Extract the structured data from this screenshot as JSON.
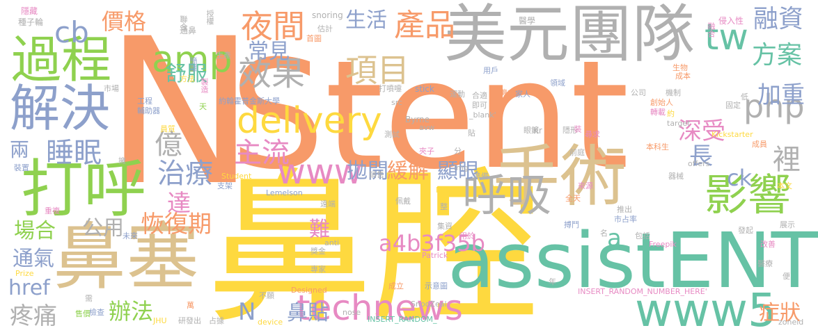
{
  "wordcloud": {
    "palette": {
      "orange": "#f79a69",
      "yellow": "#fed93f",
      "gray": "#b0b0b0",
      "tan": "#dcc28f",
      "blue": "#8da0cb",
      "green": "#8fd14f",
      "teal": "#66c2a5",
      "pink": "#e78ac3"
    },
    "words": [
      {
        "text": "Stent",
        "color": "#f79a69"
      },
      {
        "text": "N",
        "color": "#f79a69"
      },
      {
        "text": "鼻腔",
        "color": "#fed93f"
      },
      {
        "text": "美元團隊",
        "color": "#b0b0b0"
      },
      {
        "text": "鼻塞",
        "color": "#dcc28f"
      },
      {
        "text": "assistENT",
        "color": "#66c2a5"
      },
      {
        "text": "手術",
        "color": "#dcc28f"
      },
      {
        "text": "打呼",
        "color": "#8fd14f"
      },
      {
        "text": "過程",
        "color": "#8fd14f"
      },
      {
        "text": "解決",
        "color": "#8da0cb"
      },
      {
        "text": "影響",
        "color": "#8fd14f"
      },
      {
        "text": "呼吸",
        "color": "#b0b0b0"
      },
      {
        "text": "technews",
        "color": "#e78ac3"
      },
      {
        "text": "www5",
        "color": "#66c2a5"
      },
      {
        "text": "www",
        "color": "#e78ac3"
      },
      {
        "text": "delivery",
        "color": "#fed93f"
      },
      {
        "text": "amp",
        "color": "#8fd14f"
      },
      {
        "text": "夜間",
        "color": "#f79a69"
      },
      {
        "text": "產品",
        "color": "#f79a69"
      },
      {
        "text": "項目",
        "color": "#dcc28f"
      },
      {
        "text": "效果",
        "color": "#b0b0b0"
      },
      {
        "text": "tw",
        "color": "#66c2a5"
      },
      {
        "text": "php",
        "color": "#b0b0b0"
      },
      {
        "text": "cb",
        "color": "#8da0cb"
      },
      {
        "text": "主流",
        "color": "#e78ac3"
      },
      {
        "text": "治療",
        "color": "#8da0cb"
      },
      {
        "text": "睡眠",
        "color": "#8da0cb"
      },
      {
        "text": "億",
        "color": "#b0b0b0"
      },
      {
        "text": "a4b3f35b",
        "color": "#e78ac3"
      },
      {
        "text": "恢復期",
        "color": "#f79a69"
      },
      {
        "text": "達",
        "color": "#e78ac3"
      },
      {
        "text": "融資",
        "color": "#8da0cb"
      },
      {
        "text": "方案",
        "color": "#66c2a5"
      },
      {
        "text": "加重",
        "color": "#8da0cb"
      },
      {
        "text": "深受",
        "color": "#e78ac3"
      },
      {
        "text": "生活",
        "color": "#8da0cb"
      },
      {
        "text": "價格",
        "color": "#f79a69"
      },
      {
        "text": "常見",
        "color": "#8da0cb"
      },
      {
        "text": "舒服",
        "color": "#66c2a5"
      },
      {
        "text": "拋開",
        "color": "#8da0cb"
      },
      {
        "text": "緩解",
        "color": "#f79a69"
      },
      {
        "text": "顯眼",
        "color": "#8da0cb"
      },
      {
        "text": "長",
        "color": "#8da0cb"
      },
      {
        "text": "裡",
        "color": "#b0b0b0"
      },
      {
        "text": "ck",
        "color": "#8da0cb"
      },
      {
        "text": "a",
        "color": "#66c2a5"
      },
      {
        "text": "難",
        "color": "#e78ac3"
      },
      {
        "text": "公用",
        "color": "#b0b0b0"
      },
      {
        "text": "場合",
        "color": "#8fd14f"
      },
      {
        "text": "通氣",
        "color": "#8da0cb"
      },
      {
        "text": "href",
        "color": "#8da0cb"
      },
      {
        "text": "疼痛",
        "color": "#b0b0b0"
      },
      {
        "text": "辦法",
        "color": "#8fd14f"
      },
      {
        "text": "鼻貼",
        "color": "#8da0cb"
      },
      {
        "text": "N",
        "color": "#8da0cb"
      },
      {
        "text": "症狀",
        "color": "#f79a69"
      },
      {
        "text": "兩",
        "color": "#8da0cb"
      },
      {
        "text": "隱藏",
        "color": "#e78ac3"
      },
      {
        "text": "種子輪",
        "color": "#b0b0b0"
      },
      {
        "text": "通鼻",
        "color": "#b0b0b0"
      },
      {
        "text": "聯合",
        "color": "#b0b0b0"
      },
      {
        "text": "授權",
        "color": "#b0b0b0"
      },
      {
        "text": "snoring",
        "color": "#b0b0b0"
      },
      {
        "text": "估計",
        "color": "#b0b0b0"
      },
      {
        "text": "首圖",
        "color": "#f79a69"
      },
      {
        "text": "醫學",
        "color": "#b0b0b0"
      },
      {
        "text": "侵入性",
        "color": "#e78ac3"
      },
      {
        "text": "融合",
        "color": "#e78ac3"
      },
      {
        "text": "簡單",
        "color": "#8da0cb"
      },
      {
        "text": "方法",
        "color": "#fed93f"
      },
      {
        "text": "生產",
        "color": "#b0b0b0"
      },
      {
        "text": "市場",
        "color": "#b0b0b0"
      },
      {
        "text": "工程",
        "color": "#8da0cb"
      },
      {
        "text": "輔助器",
        "color": "#8da0cb"
      },
      {
        "text": "製造",
        "color": "#e78ac3"
      },
      {
        "text": "天",
        "color": "#8fd14f"
      },
      {
        "text": "約翰霍普金斯大學",
        "color": "#8da0cb"
      },
      {
        "text": "打噴嚏",
        "color": "#b0b0b0"
      },
      {
        "text": "stick",
        "color": "#8da0cb"
      },
      {
        "text": "運動",
        "color": "#b0b0b0"
      },
      {
        "text": "合適",
        "color": "#b0b0b0"
      },
      {
        "text": "即可",
        "color": "#b0b0b0"
      },
      {
        "text": "_blank'",
        "color": "#b0b0b0"
      },
      {
        "text": "用戶",
        "color": "#8da0cb"
      },
      {
        "text": "領域",
        "color": "#8da0cb"
      },
      {
        "text": "機會",
        "color": "#f79a69"
      },
      {
        "text": "家人",
        "color": "#8da0cb"
      },
      {
        "text": "生物",
        "color": "#f79a69"
      },
      {
        "text": "成本",
        "color": "#f79a69"
      },
      {
        "text": "公司",
        "color": "#b0b0b0"
      },
      {
        "text": "機制",
        "color": "#b0b0b0"
      },
      {
        "text": "低",
        "color": "#b0b0b0"
      },
      {
        "text": "固定",
        "color": "#b0b0b0"
      },
      {
        "text": "創始人",
        "color": "#f79a69"
      },
      {
        "text": "轉載",
        "color": "#e78ac3"
      },
      {
        "text": "約",
        "color": "#fed93f"
      },
      {
        "text": "target",
        "color": "#b0b0b0"
      },
      {
        "text": "Byrne",
        "color": "#b0b0b0"
      },
      {
        "text": "測試",
        "color": "#b0b0b0"
      },
      {
        "text": "src",
        "color": "#b0b0b0"
      },
      {
        "text": "avw",
        "color": "#b0b0b0"
      },
      {
        "text": "眼鏡",
        "color": "#b0b0b0"
      },
      {
        "text": "隱形",
        "color": "#b0b0b0"
      },
      {
        "text": "尋求",
        "color": "#e78ac3"
      },
      {
        "text": "裝",
        "color": "#e78ac3"
      },
      {
        "text": "Kickstarter",
        "color": "#fed93f"
      },
      {
        "text": "成員",
        "color": "#f79a69"
      },
      {
        "text": "本科生",
        "color": "#f79a69"
      },
      {
        "text": "員質",
        "color": "#fed93f"
      },
      {
        "text": "前庭",
        "color": "#b0b0b0"
      },
      {
        "text": "夾子",
        "color": "#e78ac3"
      },
      {
        "text": "Kr",
        "color": "#b0b0b0"
      },
      {
        "text": "貼",
        "color": "#b0b0b0"
      },
      {
        "text": "分",
        "color": "#b0b0b0"
      },
      {
        "text": "img",
        "color": "#b0b0b0"
      },
      {
        "text": "準備",
        "color": "#b0b0b0"
      },
      {
        "text": "銷售",
        "color": "#b0b0b0"
      },
      {
        "text": "Student",
        "color": "#fed93f"
      },
      {
        "text": "裝置",
        "color": "#8da0cb"
      },
      {
        "text": "擁",
        "color": "#b0b0b0"
      },
      {
        "text": "支架",
        "color": "#8da0cb"
      },
      {
        "text": "Lemelson",
        "color": "#8da0cb"
      },
      {
        "text": "offers",
        "color": "#b0b0b0"
      },
      {
        "text": "器械",
        "color": "#b0b0b0"
      },
      {
        "text": "來源",
        "color": "#e78ac3"
      },
      {
        "text": "MIT",
        "color": "#fed93f"
      },
      {
        "text": "本文",
        "color": "#fed93f"
      },
      {
        "text": "全天",
        "color": "#f79a69"
      },
      {
        "text": "推出",
        "color": "#b0b0b0"
      },
      {
        "text": "遠端",
        "color": "#b0b0b0"
      },
      {
        "text": "佩戴",
        "color": "#b0b0b0"
      },
      {
        "text": "整",
        "color": "#b0b0b0"
      },
      {
        "text": "重複",
        "color": "#e78ac3"
      },
      {
        "text": "未來",
        "color": "#8da0cb"
      },
      {
        "text": "搏鬥",
        "color": "#8da0cb"
      },
      {
        "text": "市占率",
        "color": "#8da0cb"
      },
      {
        "text": "名",
        "color": "#b0b0b0"
      },
      {
        "text": "包括",
        "color": "#b0b0b0"
      },
      {
        "text": "展示",
        "color": "#b0b0b0"
      },
      {
        "text": "集資",
        "color": "#b0b0b0"
      },
      {
        "text": "發起",
        "color": "#b0b0b0"
      },
      {
        "text": "用於",
        "color": "#e78ac3"
      },
      {
        "text": "anti",
        "color": "#b0b0b0"
      },
      {
        "text": "獎金",
        "color": "#b0b0b0"
      },
      {
        "text": "Freepik",
        "color": "#e78ac3"
      },
      {
        "text": "改善",
        "color": "#e78ac3"
      },
      {
        "text": "醫療",
        "color": "#b0b0b0"
      },
      {
        "text": "Patrick",
        "color": "#e78ac3"
      },
      {
        "text": "專家",
        "color": "#b0b0b0"
      },
      {
        "text": "Prize",
        "color": "#fed93f"
      },
      {
        "text": "Designed",
        "color": "#f79a69"
      },
      {
        "text": "成立",
        "color": "#f79a69"
      },
      {
        "text": "示意圖",
        "color": "#8da0cb"
      },
      {
        "text": "INSERT_RANDOM_NUMBER_HERE'",
        "color": "#e78ac3"
      },
      {
        "text": "年",
        "color": "#b0b0b0"
      },
      {
        "text": "便",
        "color": "#b0b0b0"
      },
      {
        "text": "不願",
        "color": "#b0b0b0"
      },
      {
        "text": "需",
        "color": "#b0b0b0"
      },
      {
        "text": "SnooZeal",
        "color": "#b0b0b0"
      },
      {
        "text": "售價",
        "color": "#8fd14f"
      },
      {
        "text": "檢查",
        "color": "#8da0cb"
      },
      {
        "text": "萬",
        "color": "#f79a69"
      },
      {
        "text": "JHU",
        "color": "#fed93f"
      },
      {
        "text": "研發出",
        "color": "#b0b0b0"
      },
      {
        "text": "占據",
        "color": "#b0b0b0"
      },
      {
        "text": "device",
        "color": "#fed93f"
      },
      {
        "text": "nose",
        "color": "#b0b0b0"
      },
      {
        "text": "INSERT_RANDOM_",
        "color": "#66c2a5"
      },
      {
        "text": "zoneid",
        "color": "#b0b0b0"
      }
    ]
  }
}
